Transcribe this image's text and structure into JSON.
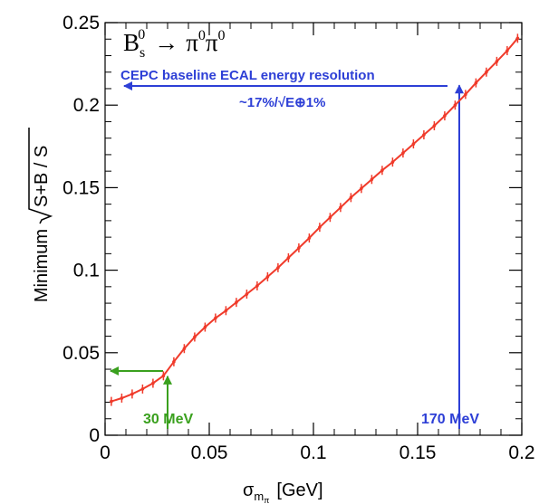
{
  "colors": {
    "series": "#f03a2a",
    "blue": "#2d3fd6",
    "green": "#3aa01e",
    "axis": "#000000"
  },
  "chart_data": {
    "type": "line",
    "title": "B_s^0 → π^0π^0",
    "title_parts": {
      "B": "B",
      "sub": "s",
      "sup": "0",
      "arrow": "→",
      "pi": "π",
      "pizero": "0"
    },
    "ylabel_prefix": "Minimum",
    "ylabel_root": "S+B / S",
    "xlabel": "σ",
    "xlabel_sub": "m",
    "xlabel_subsub": "π",
    "xlabel_unit": "[GeV]",
    "xlim": [
      0,
      0.2
    ],
    "ylim": [
      0,
      0.25
    ],
    "x_ticks": [
      "0",
      "0.05",
      "0.1",
      "0.15",
      "0.2"
    ],
    "y_ticks": [
      "0",
      "0.05",
      "0.1",
      "0.15",
      "0.2",
      "0.25"
    ],
    "grid": false,
    "series": [
      {
        "x": [
          0.003,
          0.008,
          0.013,
          0.018,
          0.023,
          0.028,
          0.033,
          0.038,
          0.043,
          0.048,
          0.053,
          0.058,
          0.063,
          0.068,
          0.073,
          0.078,
          0.083,
          0.088,
          0.093,
          0.098,
          0.103,
          0.108,
          0.113,
          0.118,
          0.123,
          0.128,
          0.133,
          0.138,
          0.143,
          0.148,
          0.153,
          0.158,
          0.163,
          0.168,
          0.173,
          0.178,
          0.183,
          0.188,
          0.193,
          0.198
        ],
        "y": [
          0.0205,
          0.0225,
          0.025,
          0.028,
          0.0315,
          0.036,
          0.0445,
          0.0525,
          0.0595,
          0.0655,
          0.071,
          0.0755,
          0.0805,
          0.0855,
          0.0905,
          0.096,
          0.1015,
          0.1075,
          0.1135,
          0.1195,
          0.126,
          0.132,
          0.138,
          0.144,
          0.1495,
          0.155,
          0.1605,
          0.1655,
          0.171,
          0.1765,
          0.182,
          0.1875,
          0.1935,
          0.2,
          0.2065,
          0.2135,
          0.22,
          0.2265,
          0.233,
          0.2405
        ]
      }
    ],
    "annotations": {
      "blue_text1": "CEPC baseline ECAL energy resolution",
      "blue_text2": "~17%/√E⊕1%",
      "blue_arrow_x": 0.17,
      "blue_arrow_tip_y": 0.212,
      "blue_label": "170 MeV",
      "green_label": "30 MeV",
      "green_arrow_x": 0.03,
      "green_arrow_tip_y": 0.039
    }
  }
}
